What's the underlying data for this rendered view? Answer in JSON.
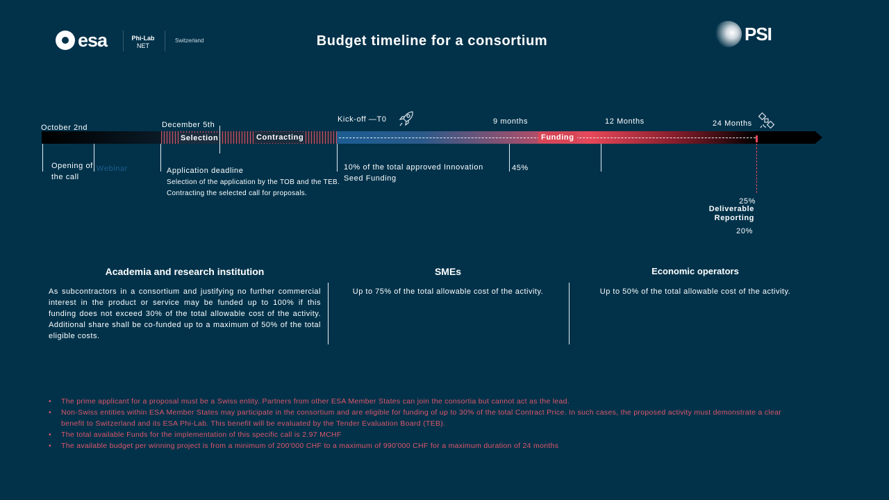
{
  "header": {
    "title": "Budget timeline for a consortium",
    "logos": {
      "esa": "esa",
      "philab": "Phi-Lab",
      "philab_sub": "NET",
      "country": "Switzerland",
      "psi": "PSI"
    }
  },
  "timeline": {
    "dates": {
      "start": "October 2nd",
      "deadline": "December 5th",
      "kickoff": "Kick-off —T0",
      "m9": "9 months",
      "m12": "12 Months",
      "m24": "24 Months"
    },
    "phases": {
      "selection": "Selection",
      "contracting": "Contracting",
      "funding": "Funding"
    },
    "events": {
      "opening": "Opening of the call",
      "webinar": "Webinar",
      "deadline": "Application  deadline",
      "selection_desc": "Selection of the application by the TOB and the TEB.",
      "contracting_desc": "Contracting the selected call for proposals.",
      "kickoff_desc": "10% of the total approved  Innovation Seed Funding",
      "m9_pct": "45%",
      "final_pct1": "25%",
      "deliverable": "Deliverable",
      "reporting": "Reporting",
      "final_pct2": "20%"
    },
    "colors": {
      "blue": "#1c5d93",
      "red": "#e8485a",
      "black": "#000000"
    }
  },
  "columns": [
    {
      "title": "Academia and research institution",
      "text": "As subcontractors in a consortium and justifying no further commercial interest in the product or service may be funded up to 100% if this funding does not exceed 30% of the total allowable cost of the activity. Additional share shall be co-funded up to a maximum of 50% of the total eligible costs."
    },
    {
      "title": "SMEs",
      "text": "Up to 75% of the total allowable cost of the activity."
    },
    {
      "title": "Economic operators",
      "text": "Up to 50% of the total allowable cost of the activity."
    }
  ],
  "notes": [
    "The prime applicant  for a proposal  must be a Swiss entity. Partners from other ESA Member States  can join the  consortia  but cannot  act as the  lead.",
    "Non-Swiss entities  within  ESA Member States  may participate  in the  consortium  and are eligible for funding  of up to 30% of the total Contract  Price. In such cases, the proposed  activity must demonstrate  a clear benefit  to Switzerland  and its ESA Phi-Lab.  This benefit will be evaluated  by the  Tender Evaluation  Board  (TEB).",
    "The total  available  Funds  for the  implementation  of this specific call is 2.97 MCHF",
    "The available  budget  per winning  project  is from a minimum  of  200'000 CHF to  a maximum of 990'000 CHF for a maximum duration  of 24 months"
  ]
}
